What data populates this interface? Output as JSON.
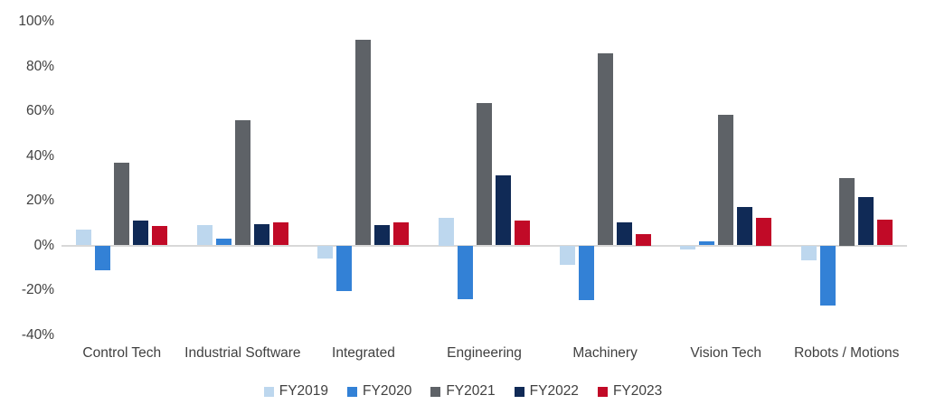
{
  "chart_data": {
    "type": "bar",
    "title": "",
    "xlabel": "",
    "ylabel": "",
    "categories": [
      "Control Tech",
      "Industrial Software",
      "Integrated",
      "Engineering",
      "Machinery",
      "Vision Tech",
      "Robots / Motions"
    ],
    "series": [
      {
        "name": "FY2019",
        "color": "#BDD7EE",
        "values": [
          7,
          9,
          -6,
          12.5,
          -8.5,
          -2,
          -6.5
        ]
      },
      {
        "name": "FY2020",
        "color": "#3381D6",
        "values": [
          -11,
          3,
          -20.5,
          -24,
          -24.5,
          2,
          -27
        ]
      },
      {
        "name": "FY2021",
        "color": "#5E6267",
        "values": [
          37,
          56,
          92,
          63.5,
          86,
          58.5,
          30
        ]
      },
      {
        "name": "FY2022",
        "color": "#102A56",
        "values": [
          11,
          9.5,
          9,
          31.5,
          10.5,
          17,
          21.5
        ]
      },
      {
        "name": "FY2023",
        "color": "#C10A27",
        "values": [
          8.5,
          10.5,
          10.5,
          11,
          5,
          12.5,
          11.5
        ]
      }
    ],
    "ylim": [
      -40,
      100
    ],
    "yticks": [
      {
        "label": "100%",
        "value": 100
      },
      {
        "label": "80%",
        "value": 80
      },
      {
        "label": "60%",
        "value": 60
      },
      {
        "label": "40%",
        "value": 40
      },
      {
        "label": "20%",
        "value": 20
      },
      {
        "label": "0%",
        "value": 0
      },
      {
        "label": "-20%",
        "value": -20
      },
      {
        "label": "-40%",
        "value": -40
      }
    ],
    "grid": false,
    "legend_position": "bottom",
    "axis_line_color": "#D8D8D8",
    "text_color": "#404040"
  }
}
